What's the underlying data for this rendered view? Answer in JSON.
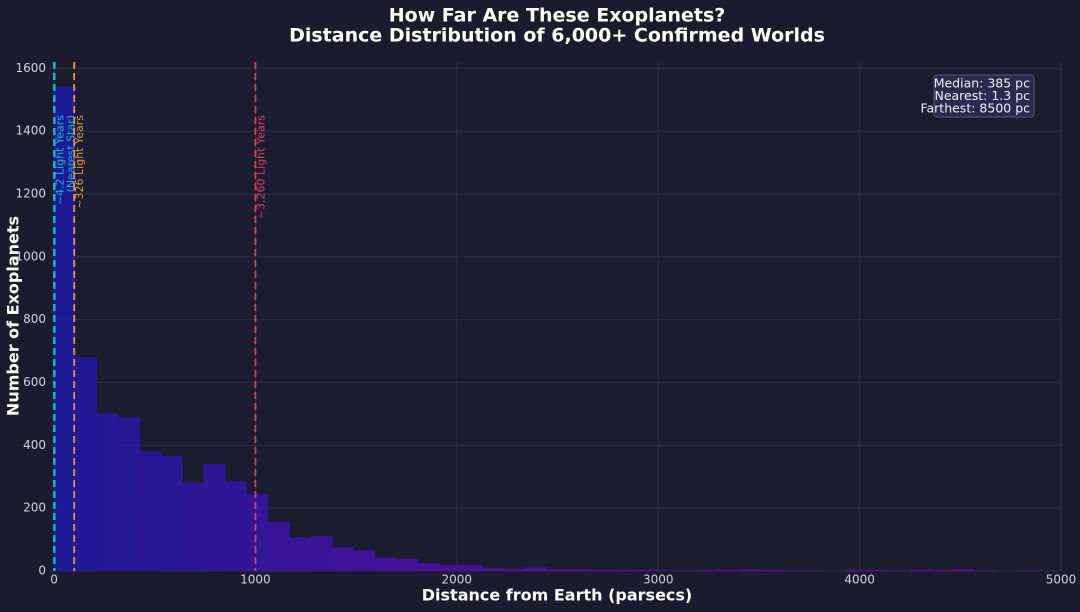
{
  "chart_data": {
    "type": "histogram",
    "title": [
      "How Far Are These Exoplanets?",
      "Distance Distribution of 6,000+ Confirmed Worlds"
    ],
    "x_label": "Distance from Earth (parsecs)",
    "y_label": "Number of Exoplanets",
    "bins": [
      0,
      106.25,
      212.5,
      318.75,
      425,
      531.25,
      637.5,
      743.75,
      850,
      956.25,
      1062.5,
      1168.75,
      1275,
      1381.25,
      1487.5,
      1593.75,
      1700,
      1806.25,
      1912.5,
      2018.75,
      2125,
      2231.25,
      2337.5,
      2443.75,
      2550,
      2656.25,
      2762.5,
      2868.75,
      2975,
      3081.25,
      3187.5,
      3293.75,
      3400,
      3506.25,
      3612.5,
      3718.75,
      3825,
      3931.25,
      4037.5,
      4143.75,
      4250,
      4356.25,
      4462.5,
      4568.75,
      4675,
      4781.25,
      4887.5,
      4993.75
    ],
    "counts": [
      1540,
      680,
      500,
      490,
      380,
      365,
      280,
      340,
      285,
      245,
      155,
      105,
      110,
      75,
      65,
      42,
      38,
      25,
      18,
      18,
      8,
      6,
      10,
      5,
      5,
      3,
      2,
      3,
      1,
      1,
      2,
      3,
      4,
      2,
      1,
      1,
      0,
      3,
      2,
      1,
      3,
      2,
      5,
      1,
      0,
      1,
      0
    ],
    "colormap": [
      "#1d1aa0",
      "#6a0aa8"
    ],
    "xlim": [
      -20,
      5000
    ],
    "ylim": [
      0,
      1620
    ],
    "xticks": [
      0,
      1000,
      2000,
      3000,
      4000,
      5000
    ],
    "yticks": [
      0,
      200,
      400,
      600,
      800,
      1000,
      1200,
      1400,
      1600
    ],
    "grid": true,
    "reference_lines": [
      {
        "x": 1.3,
        "color": "#17b8c8",
        "label": [
          "~4.2 Light Years",
          "(Nearest Star)"
        ]
      },
      {
        "x": 100,
        "color": "#e09a30",
        "label": [
          "~326 Light Years"
        ]
      },
      {
        "x": 1000,
        "color": "#d8405a",
        "label": [
          "~3,260 Light Years"
        ]
      }
    ],
    "stats": [
      "Median: 385 pc",
      "Nearest: 1.3 pc",
      "Farthest: 8500 pc"
    ]
  }
}
